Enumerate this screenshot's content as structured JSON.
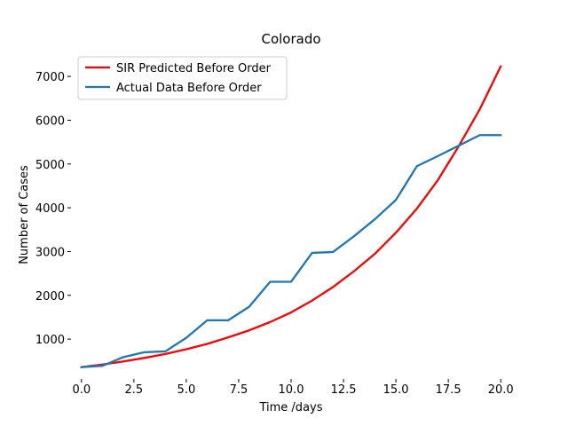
{
  "chart_data": {
    "type": "line",
    "title": "Colorado",
    "xlabel": "Time /days",
    "ylabel": "Number of Cases",
    "xlim": [
      -0.5,
      20.5
    ],
    "ylim": [
      90,
      7570
    ],
    "xticks": [
      0.0,
      2.5,
      5.0,
      7.5,
      10.0,
      12.5,
      15.0,
      17.5,
      20.0
    ],
    "xtick_labels": [
      "0.0",
      "2.5",
      "5.0",
      "7.5",
      "10.0",
      "12.5",
      "15.0",
      "17.5",
      "20.0"
    ],
    "yticks": [
      1000,
      2000,
      3000,
      4000,
      5000,
      6000,
      7000
    ],
    "ytick_labels": [
      "1000",
      "2000",
      "3000",
      "4000",
      "5000",
      "6000",
      "7000"
    ],
    "grid": false,
    "legend_position": "top-left",
    "series": [
      {
        "name": "SIR Predicted Before Order",
        "color": "#ff0000",
        "x": [
          0,
          1,
          2,
          3,
          4,
          5,
          6,
          7,
          8,
          9,
          10,
          11,
          12,
          13,
          14,
          15,
          16,
          17,
          18,
          19,
          20
        ],
        "values": [
          360,
          420,
          490,
          570,
          660,
          770,
          890,
          1040,
          1200,
          1390,
          1610,
          1880,
          2190,
          2550,
          2950,
          3430,
          3980,
          4630,
          5410,
          6250,
          7230
        ]
      },
      {
        "name": "Actual Data Before Order",
        "color": "#1f77b4",
        "x": [
          0,
          1,
          2,
          3,
          4,
          5,
          6,
          7,
          8,
          9,
          10,
          11,
          12,
          13,
          14,
          15,
          16,
          17,
          18,
          19,
          20
        ],
        "values": [
          360,
          390,
          590,
          700,
          720,
          1030,
          1430,
          1430,
          1740,
          2310,
          2310,
          2970,
          2990,
          3350,
          3740,
          4180,
          4950,
          5180,
          5420,
          5660,
          5660
        ]
      }
    ]
  }
}
